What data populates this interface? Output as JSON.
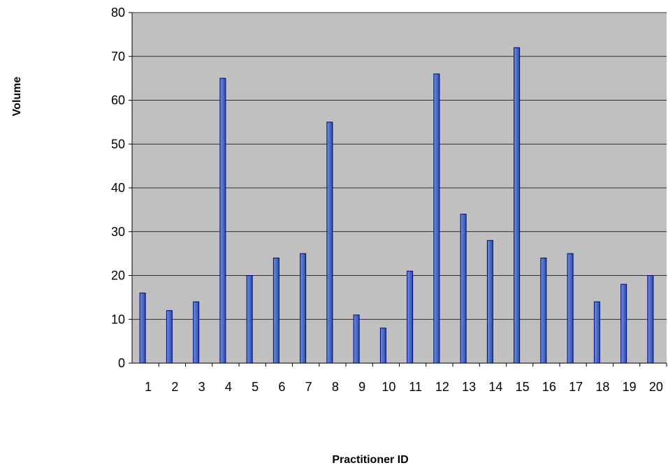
{
  "chart_data": {
    "type": "bar",
    "title": "",
    "xlabel": "Practitioner ID",
    "ylabel": "Volume",
    "categories": [
      "1",
      "2",
      "3",
      "4",
      "5",
      "6",
      "7",
      "8",
      "9",
      "10",
      "11",
      "12",
      "13",
      "14",
      "15",
      "16",
      "17",
      "18",
      "19",
      "20"
    ],
    "values": [
      16,
      12,
      14,
      65,
      20,
      24,
      25,
      55,
      11,
      8,
      21,
      66,
      34,
      28,
      72,
      24,
      25,
      14,
      18,
      20
    ],
    "ylim": [
      0,
      80
    ],
    "yticks": [
      0,
      10,
      20,
      30,
      40,
      50,
      60,
      70,
      80
    ],
    "grid": true,
    "legend": "none",
    "colors": {
      "bar_fill": "#4a6fc8",
      "bar_stroke": "#000080",
      "plot_background": "#c0c0c0",
      "grid": "#000000"
    }
  }
}
